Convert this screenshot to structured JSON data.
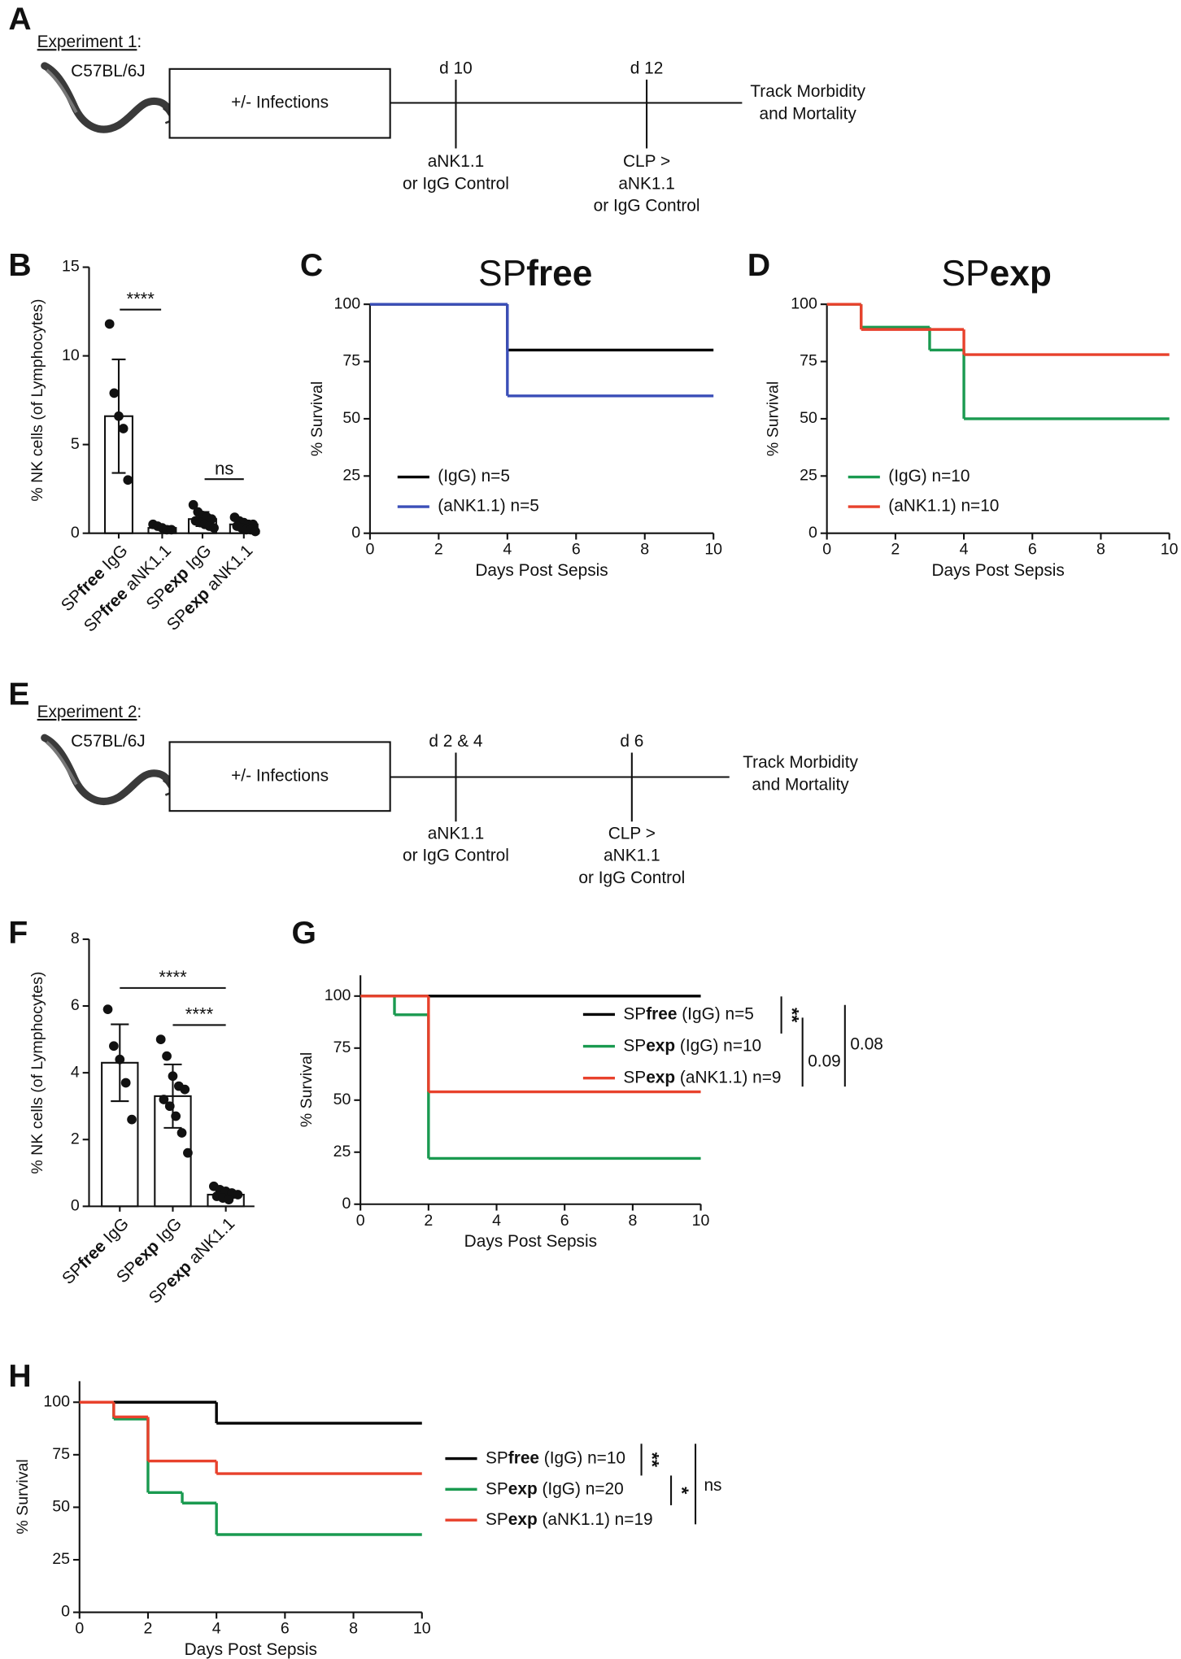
{
  "panel_labels": [
    "A",
    "B",
    "C",
    "D",
    "E",
    "F",
    "G",
    "H"
  ],
  "timelines": [
    {
      "experiment": [
        "Experiment 1",
        ":"
      ],
      "strain": "C57BL/6J",
      "treatment": "+/- Infections",
      "events": [
        {
          "day": "d 10",
          "lines": [
            "aNK1.1",
            "or IgG Control"
          ]
        },
        {
          "day": "d 12",
          "lines": [
            "CLP >",
            "aNK1.1",
            "or IgG Control"
          ]
        }
      ],
      "outcome": [
        "Track Morbidity",
        "and Mortality"
      ]
    },
    {
      "experiment": [
        "Experiment 2",
        ":"
      ],
      "strain": "C57BL/6J",
      "treatment": "+/- Infections",
      "events": [
        {
          "day": "d 2 & 4",
          "lines": [
            "aNK1.1",
            "or IgG Control"
          ]
        },
        {
          "day": "d 6",
          "lines": [
            "CLP >",
            "aNK1.1",
            "or IgG Control"
          ]
        }
      ],
      "outcome": [
        "Track Morbidity",
        "and Mortality"
      ]
    }
  ],
  "chart_data": [
    {
      "type": "bar",
      "ylabel": "% NK cells (of Lymphocytes)",
      "categories": [
        [
          "SP",
          "free",
          " IgG"
        ],
        [
          "SP",
          "free",
          " aNK1.1"
        ],
        [
          "SP",
          "exp",
          " IgG"
        ],
        [
          "SP",
          "exp",
          " aNK1.1"
        ]
      ],
      "values": [
        6.6,
        0.3,
        0.8,
        0.5
      ],
      "errors": [
        3.2,
        0.1,
        0.4,
        0.2
      ],
      "points": [
        [
          11.8,
          7.9,
          6.6,
          5.9,
          3.0
        ],
        [
          0.5,
          0.4,
          0.3,
          0.2,
          0.2
        ],
        [
          1.6,
          1.2,
          1.0,
          0.9,
          0.8,
          0.7,
          0.6,
          0.5,
          0.4,
          0.3
        ],
        [
          0.9,
          0.7,
          0.6,
          0.5,
          0.5,
          0.4,
          0.3,
          0.2,
          0.2,
          0.1
        ]
      ],
      "ylim": [
        0,
        15
      ],
      "yticks": [
        0,
        5,
        10,
        15
      ],
      "color": "#ffffff",
      "annotations": [
        "****",
        "ns"
      ]
    },
    {
      "type": "survival",
      "title": [
        "SP",
        "free"
      ],
      "xlabel": "Days Post Sepsis",
      "ylabel": "% Survival",
      "xlim": [
        0,
        10
      ],
      "xticks": [
        0,
        2,
        4,
        6,
        8,
        10
      ],
      "ylim": [
        0,
        100
      ],
      "yticks": [
        0,
        25,
        50,
        75,
        100
      ],
      "series": [
        {
          "name": "(IgG) n=5",
          "color": "#000000",
          "x": [
            0,
            4,
            10
          ],
          "values": [
            100,
            80,
            80
          ]
        },
        {
          "name": "(aNK1.1) n=5",
          "color": "#3b4fb8",
          "x": [
            0,
            4,
            10
          ],
          "values": [
            100,
            60,
            60
          ]
        }
      ]
    },
    {
      "type": "survival",
      "title": [
        "SP",
        "exp"
      ],
      "xlabel": "Days Post Sepsis",
      "ylabel": "% Survival",
      "xlim": [
        0,
        10
      ],
      "xticks": [
        0,
        2,
        4,
        6,
        8,
        10
      ],
      "ylim": [
        0,
        100
      ],
      "yticks": [
        0,
        25,
        50,
        75,
        100
      ],
      "series": [
        {
          "name": "(IgG) n=10",
          "color": "#1a9a50",
          "x": [
            0,
            1,
            3,
            4,
            10
          ],
          "values": [
            100,
            90,
            80,
            50,
            50
          ]
        },
        {
          "name": "(aNK1.1) n=10",
          "color": "#e8412c",
          "x": [
            0,
            1,
            4,
            10
          ],
          "values": [
            100,
            89,
            78,
            78
          ]
        }
      ]
    },
    {
      "type": "bar",
      "ylabel": "% NK cells (of Lymphocytes)",
      "categories": [
        [
          "SP",
          "free",
          " IgG"
        ],
        [
          "SP",
          "exp",
          " IgG"
        ],
        [
          "SP",
          "exp",
          " aNK1.1"
        ]
      ],
      "values": [
        4.3,
        3.3,
        0.35
      ],
      "errors": [
        1.15,
        0.95,
        0.1
      ],
      "points": [
        [
          5.9,
          4.8,
          4.4,
          3.7,
          2.6
        ],
        [
          5.0,
          4.5,
          3.9,
          3.6,
          3.5,
          3.2,
          3.0,
          2.7,
          2.2,
          1.6
        ],
        [
          0.6,
          0.5,
          0.45,
          0.4,
          0.35,
          0.3,
          0.25,
          0.2
        ]
      ],
      "ylim": [
        0,
        8
      ],
      "yticks": [
        0,
        2,
        4,
        6,
        8
      ],
      "color": "#ffffff",
      "annotations": [
        "****",
        "****"
      ]
    },
    {
      "type": "survival",
      "xlabel": "Days Post Sepsis",
      "ylabel": "% Survival",
      "xlim": [
        0,
        10
      ],
      "xticks": [
        0,
        2,
        4,
        6,
        8,
        10
      ],
      "ylim": [
        0,
        110
      ],
      "yticks": [
        0,
        25,
        50,
        75,
        100
      ],
      "series": [
        {
          "name": [
            "SP",
            "free",
            " (IgG) n=5"
          ],
          "color": "#000000",
          "x": [
            0,
            10
          ],
          "values": [
            100,
            100
          ]
        },
        {
          "name": [
            "SP",
            "exp",
            " (IgG) n=10"
          ],
          "color": "#1a9a50",
          "x": [
            0,
            1,
            2,
            10
          ],
          "values": [
            100,
            91,
            22,
            22
          ]
        },
        {
          "name": [
            "SP",
            "exp",
            " (aNK1.1) n=9"
          ],
          "color": "#e8412c",
          "x": [
            0,
            2,
            10
          ],
          "values": [
            100,
            54,
            54
          ]
        }
      ],
      "annotations": [
        "**",
        "0.09",
        "0.08"
      ]
    },
    {
      "type": "survival",
      "xlabel": "Days Post Sepsis",
      "ylabel": "% Survival",
      "xlim": [
        0,
        10
      ],
      "xticks": [
        0,
        2,
        4,
        6,
        8,
        10
      ],
      "ylim": [
        0,
        110
      ],
      "yticks": [
        0,
        25,
        50,
        75,
        100
      ],
      "series": [
        {
          "name": [
            "SP",
            "free",
            " (IgG) n=10"
          ],
          "color": "#000000",
          "x": [
            0,
            4,
            10
          ],
          "values": [
            100,
            90,
            90
          ]
        },
        {
          "name": [
            "SP",
            "exp",
            " (IgG) n=20"
          ],
          "color": "#1a9a50",
          "x": [
            0,
            1,
            2,
            3,
            4,
            10
          ],
          "values": [
            100,
            92,
            57,
            52,
            37,
            37
          ]
        },
        {
          "name": [
            "SP",
            "exp",
            " (aNK1.1) n=19"
          ],
          "color": "#e8412c",
          "x": [
            0,
            1,
            2,
            4,
            10
          ],
          "values": [
            100,
            93,
            72,
            66,
            66
          ]
        }
      ],
      "annotations": [
        "**",
        "*",
        "ns"
      ]
    }
  ]
}
